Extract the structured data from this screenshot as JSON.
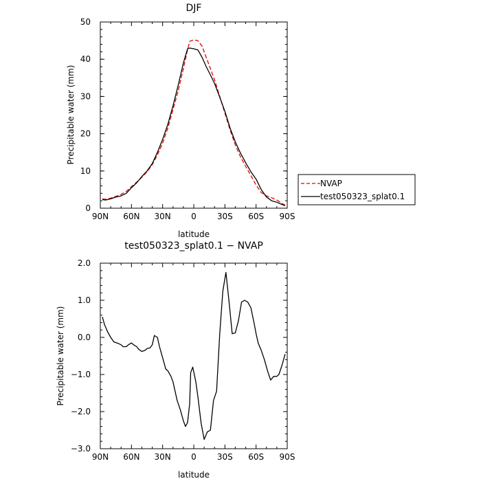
{
  "chart_data": [
    {
      "type": "line",
      "title": "DJF",
      "xlabel": "latitude",
      "ylabel": "Precipitable water (mm)",
      "xlim": [
        90,
        -90
      ],
      "ylim": [
        0,
        50
      ],
      "xticks": [
        90,
        60,
        30,
        0,
        -30,
        -60,
        -90
      ],
      "xtick_labels": [
        "90N",
        "60N",
        "30N",
        "0",
        "30S",
        "60S",
        "90S"
      ],
      "yticks": [
        0,
        10,
        20,
        30,
        40,
        50
      ],
      "ytick_labels": [
        "0",
        "10",
        "20",
        "30",
        "40",
        "50"
      ],
      "legend_position": "right",
      "series": [
        {
          "name": "NVAP",
          "color": "#e00000",
          "dash": "dashed",
          "x": [
            88,
            85,
            80,
            75,
            70,
            65,
            60,
            55,
            50,
            45,
            40,
            35,
            30,
            25,
            20,
            15,
            10,
            6,
            4,
            0,
            -4,
            -8,
            -12,
            -16,
            -20,
            -25,
            -30,
            -35,
            -40,
            -45,
            -50,
            -55,
            -60,
            -65,
            -70,
            -75,
            -80,
            -85,
            -88
          ],
          "y": [
            2.5,
            2.4,
            2.7,
            3.2,
            3.7,
            4.5,
            5.8,
            7.0,
            8.3,
            9.8,
            11.7,
            14.3,
            17.5,
            21.5,
            26.5,
            31.5,
            37.5,
            42.5,
            44.8,
            45.2,
            45.0,
            43.5,
            40.5,
            37.5,
            34.5,
            30.0,
            25.5,
            21.0,
            17.0,
            13.8,
            11.2,
            8.8,
            6.2,
            4.2,
            3.3,
            2.8,
            2.2,
            1.3,
            0.8
          ]
        },
        {
          "name": "test050323_splat0.1",
          "color": "#000000",
          "dash": "solid",
          "x": [
            88,
            85,
            80,
            75,
            70,
            65,
            60,
            55,
            50,
            45,
            40,
            35,
            30,
            25,
            20,
            15,
            10,
            6,
            4,
            0,
            -4,
            -8,
            -12,
            -16,
            -20,
            -25,
            -30,
            -35,
            -40,
            -45,
            -50,
            -55,
            -60,
            -65,
            -70,
            -75,
            -80,
            -85,
            -88
          ],
          "y": [
            2.3,
            2.2,
            2.5,
            3.0,
            3.3,
            4.0,
            5.5,
            6.8,
            8.5,
            10.0,
            12.0,
            15.0,
            18.5,
            22.5,
            27.5,
            33.0,
            39.0,
            42.8,
            43.0,
            42.8,
            42.5,
            40.5,
            38.0,
            35.8,
            33.5,
            29.8,
            26.0,
            21.5,
            17.8,
            14.8,
            12.2,
            9.8,
            7.8,
            5.0,
            3.0,
            2.0,
            1.6,
            1.0,
            0.7
          ]
        }
      ]
    },
    {
      "type": "line",
      "title": "test050323_splat0.1 − NVAP",
      "xlabel": "latitude",
      "ylabel": "Precipitable water (mm)",
      "xlim": [
        90,
        -90
      ],
      "ylim": [
        -3.0,
        2.0
      ],
      "xticks": [
        90,
        60,
        30,
        0,
        -30,
        -60,
        -90
      ],
      "xtick_labels": [
        "90N",
        "60N",
        "30N",
        "0",
        "30S",
        "60S",
        "90S"
      ],
      "yticks": [
        -3.0,
        -2.0,
        -1.0,
        0.0,
        1.0,
        2.0
      ],
      "ytick_labels": [
        "−3.0",
        "−2.0",
        "−1.0",
        "0.0",
        "1.0",
        "2.0"
      ],
      "series": [
        {
          "color": "#000000",
          "dash": "solid",
          "x": [
            88,
            86,
            83,
            80,
            77,
            75,
            73,
            70,
            68,
            65,
            63,
            60,
            58,
            55,
            53,
            50,
            47,
            45,
            42,
            40,
            38,
            35,
            33,
            30,
            27,
            25,
            22,
            20,
            18,
            16,
            13,
            10,
            8,
            6,
            4,
            3,
            1,
            -2,
            -4,
            -7,
            -10,
            -13,
            -16,
            -19,
            -22,
            -25,
            -28,
            -31,
            -34,
            -37,
            -40,
            -43,
            -46,
            -49,
            -52,
            -55,
            -58,
            -60,
            -62,
            -65,
            -68,
            -71,
            -74,
            -77,
            -80,
            -82,
            -85,
            -88
          ],
          "y": [
            0.55,
            0.35,
            0.15,
            0.0,
            -0.12,
            -0.14,
            -0.16,
            -0.2,
            -0.25,
            -0.25,
            -0.2,
            -0.15,
            -0.2,
            -0.25,
            -0.32,
            -0.38,
            -0.35,
            -0.3,
            -0.28,
            -0.2,
            0.05,
            0.0,
            -0.25,
            -0.55,
            -0.85,
            -0.9,
            -1.05,
            -1.2,
            -1.45,
            -1.7,
            -1.95,
            -2.25,
            -2.4,
            -2.3,
            -1.8,
            -0.95,
            -0.8,
            -1.2,
            -1.6,
            -2.3,
            -2.75,
            -2.55,
            -2.5,
            -1.7,
            -1.45,
            0.1,
            1.25,
            1.75,
            0.95,
            0.1,
            0.12,
            0.45,
            0.95,
            1.0,
            0.95,
            0.8,
            0.4,
            0.1,
            -0.15,
            -0.35,
            -0.6,
            -0.9,
            -1.15,
            -1.05,
            -1.05,
            -1.0,
            -0.75,
            -0.45
          ]
        }
      ]
    }
  ]
}
